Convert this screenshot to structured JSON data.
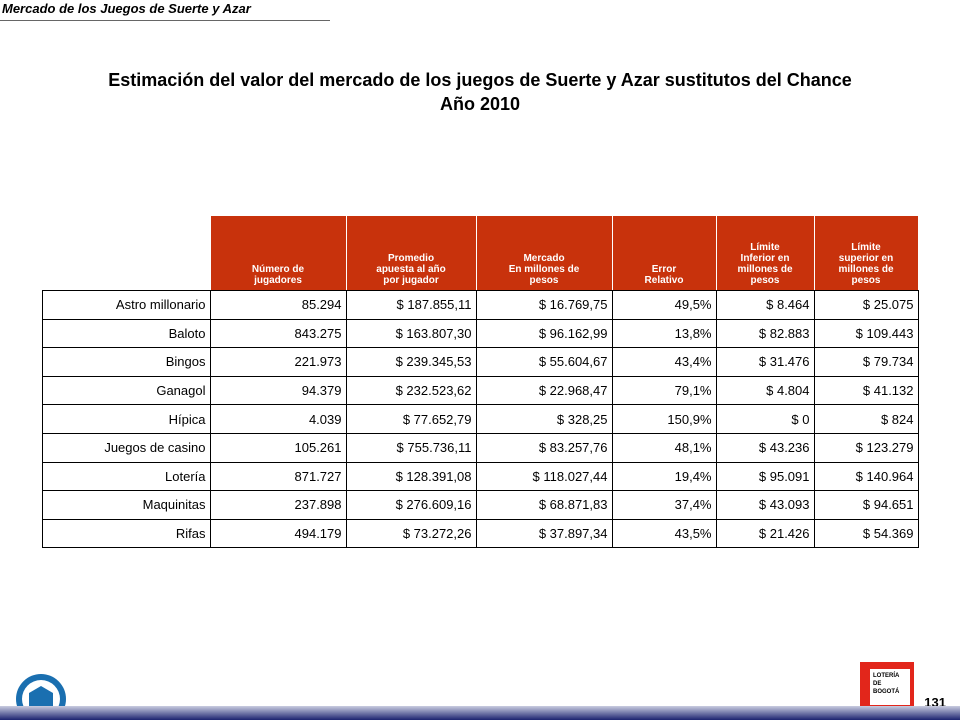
{
  "header": {
    "running_title": "Mercado de los Juegos de Suerte y Azar",
    "page_number": "131"
  },
  "title": {
    "line1": "Estimación del valor del mercado de los juegos de Suerte y Azar sustitutos del Chance",
    "line2": "Año 2010"
  },
  "table": {
    "columns": [
      "Número de\njugadores",
      "Promedio\napuesta al año\npor jugador",
      "Mercado\nEn millones de\npesos",
      "Error\nRelativo",
      "Límite\nInferior en\nmillones de\npesos",
      "Límite\nsuperior en\nmillones de\npesos"
    ],
    "rows": [
      [
        "Astro millonario",
        "85.294",
        "$ 187.855,11",
        "$ 16.769,75",
        "49,5%",
        "$ 8.464",
        "$ 25.075"
      ],
      [
        "Baloto",
        "843.275",
        "$ 163.807,30",
        "$ 96.162,99",
        "13,8%",
        "$ 82.883",
        "$ 109.443"
      ],
      [
        "Bingos",
        "221.973",
        "$ 239.345,53",
        "$ 55.604,67",
        "43,4%",
        "$ 31.476",
        "$ 79.734"
      ],
      [
        "Ganagol",
        "94.379",
        "$ 232.523,62",
        "$ 22.968,47",
        "79,1%",
        "$ 4.804",
        "$ 41.132"
      ],
      [
        "Hípica",
        "4.039",
        "$ 77.652,79",
        "$ 328,25",
        "150,9%",
        "$ 0",
        "$ 824"
      ],
      [
        "Juegos de casino",
        "105.261",
        "$ 755.736,11",
        "$ 83.257,76",
        "48,1%",
        "$ 43.236",
        "$ 123.279"
      ],
      [
        "Lotería",
        "871.727",
        "$ 128.391,08",
        "$ 118.027,44",
        "19,4%",
        "$ 95.091",
        "$ 140.964"
      ],
      [
        "Maquinitas",
        "237.898",
        "$ 276.609,16",
        "$ 68.871,83",
        "37,4%",
        "$ 43.093",
        "$ 94.651"
      ],
      [
        "Rifas",
        "494.179",
        "$ 73.272,26",
        "$ 37.897,34",
        "43,5%",
        "$ 21.426",
        "$ 54.369"
      ]
    ]
  },
  "logo": {
    "line1": "LOTERÍA",
    "line2": "DE",
    "line3": "BOGOTÁ"
  }
}
